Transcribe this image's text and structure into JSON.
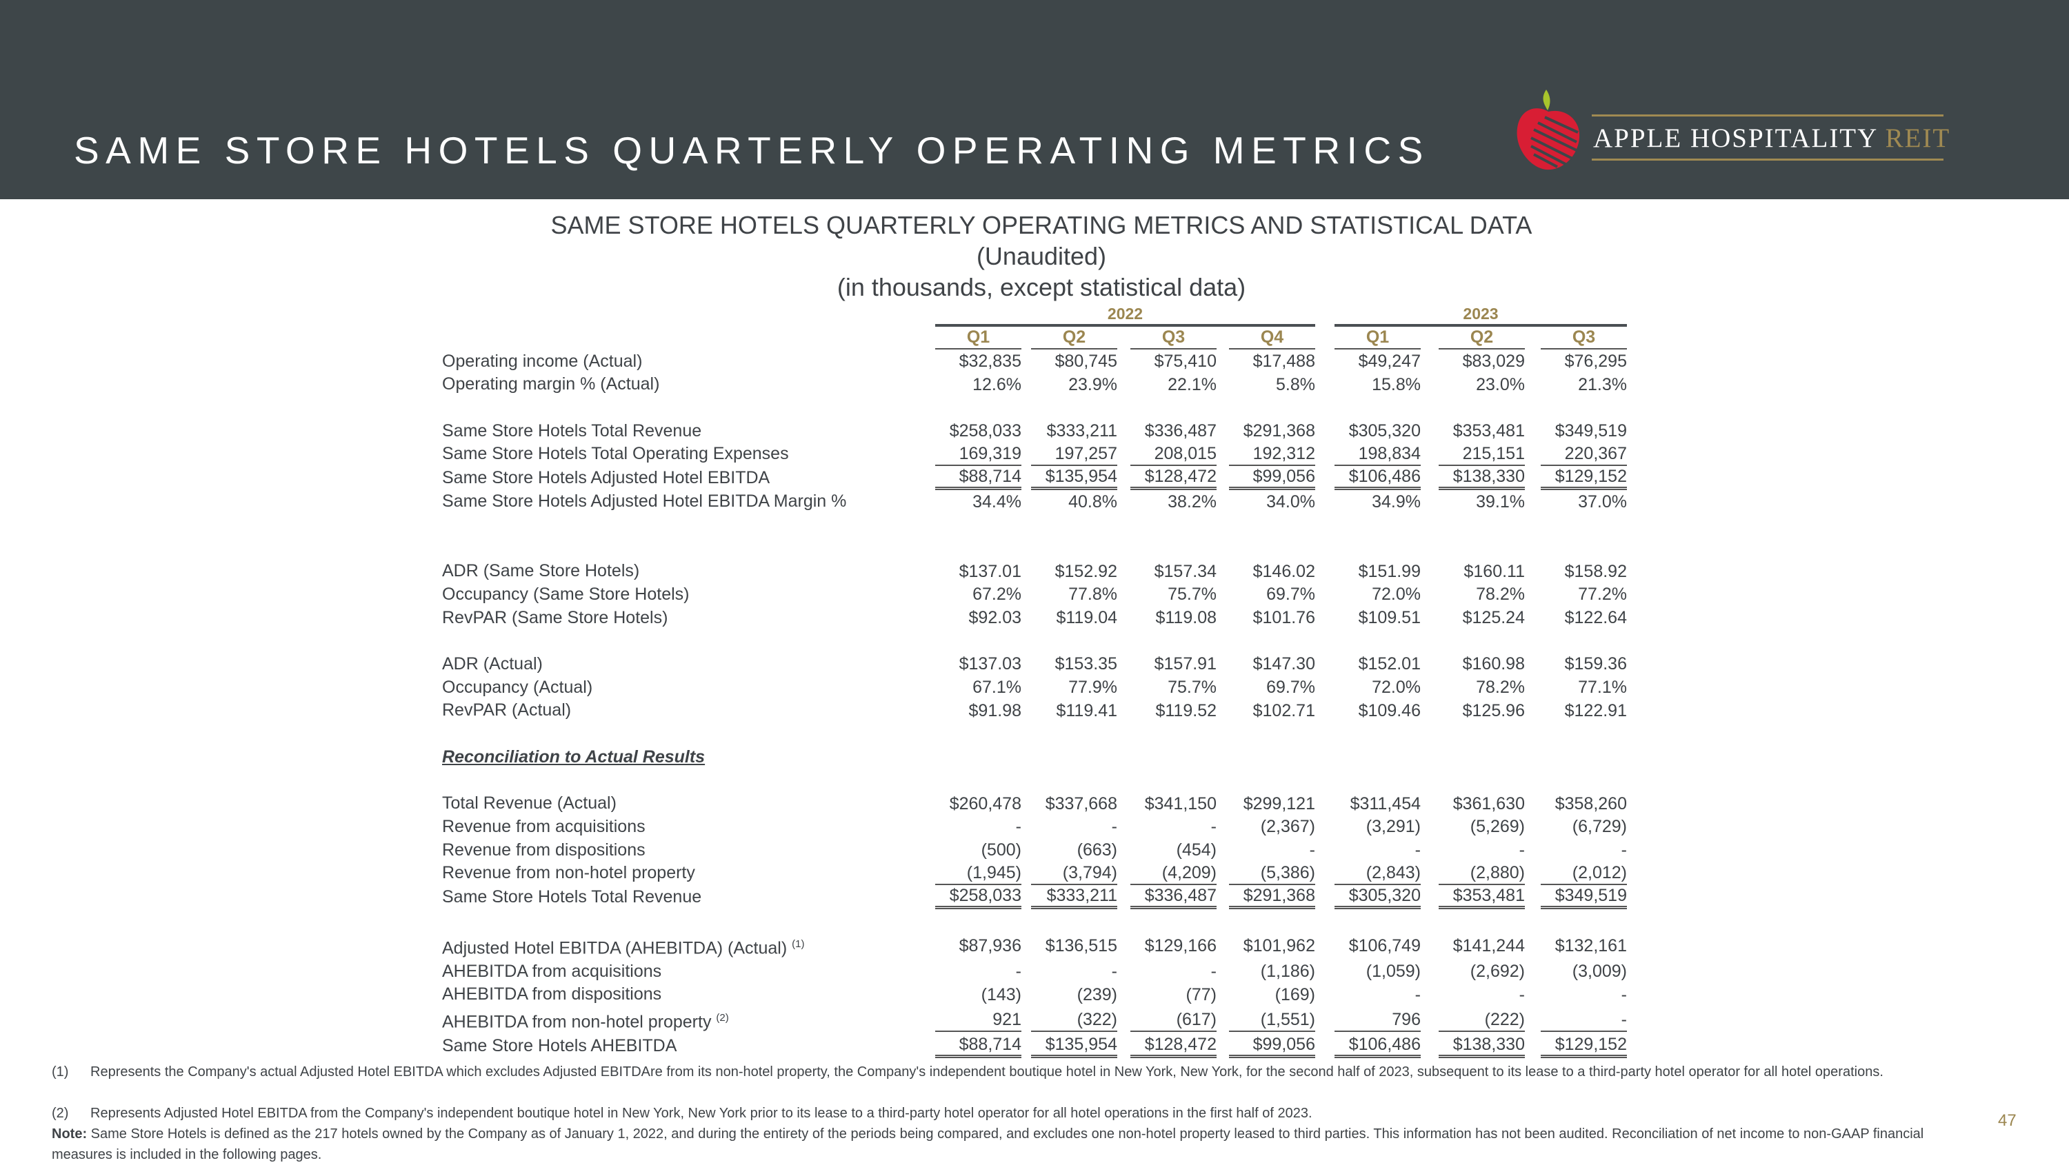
{
  "header": {
    "title": "SAME STORE HOTELS QUARTERLY OPERATING METRICS",
    "logo": {
      "text": "APPLE HOSPITALITY",
      "accent": "REIT"
    }
  },
  "table_title": {
    "line1": "SAME STORE HOTELS QUARTERLY OPERATING METRICS AND STATISTICAL DATA",
    "line2": "(Unaudited)",
    "line3": "(in thousands, except statistical data)"
  },
  "years": [
    "2022",
    "2023"
  ],
  "quarters": [
    "Q1",
    "Q2",
    "Q3",
    "Q4",
    "Q1",
    "Q2",
    "Q3"
  ],
  "rows": [
    {
      "label": "Operating income (Actual)",
      "values": [
        "$32,835",
        "$80,745",
        "$75,410",
        "$17,488",
        "$49,247",
        "$83,029",
        "$76,295"
      ]
    },
    {
      "label": "Operating margin % (Actual)",
      "values": [
        "12.6%",
        "23.9%",
        "22.1%",
        "5.8%",
        "15.8%",
        "23.0%",
        "21.3%"
      ]
    },
    null,
    {
      "label": "Same Store Hotels Total Revenue",
      "values": [
        "$258,033",
        "$333,211",
        "$336,487",
        "$291,368",
        "$305,320",
        "$353,481",
        "$349,519"
      ]
    },
    {
      "label": "Same Store Hotels Total Operating Expenses",
      "values": [
        "169,319",
        "197,257",
        "208,015",
        "192,312",
        "198,834",
        "215,151",
        "220,367"
      ],
      "line": "u"
    },
    {
      "label": "Same Store Hotels Adjusted Hotel EBITDA",
      "values": [
        "$88,714",
        "$135,954",
        "$128,472",
        "$99,056",
        "$106,486",
        "$138,330",
        "$129,152"
      ],
      "line": "uu"
    },
    {
      "label": "Same Store Hotels Adjusted Hotel EBITDA Margin %",
      "values": [
        "34.4%",
        "40.8%",
        "38.2%",
        "34.0%",
        "34.9%",
        "39.1%",
        "37.0%"
      ]
    },
    null,
    null,
    {
      "label": "ADR (Same Store Hotels)",
      "values": [
        "$137.01",
        "$152.92",
        "$157.34",
        "$146.02",
        "$151.99",
        "$160.11",
        "$158.92"
      ]
    },
    {
      "label": "Occupancy (Same Store Hotels)",
      "values": [
        "67.2%",
        "77.8%",
        "75.7%",
        "69.7%",
        "72.0%",
        "78.2%",
        "77.2%"
      ]
    },
    {
      "label": "RevPAR (Same Store Hotels)",
      "values": [
        "$92.03",
        "$119.04",
        "$119.08",
        "$101.76",
        "$109.51",
        "$125.24",
        "$122.64"
      ]
    },
    null,
    {
      "label": "ADR (Actual)",
      "values": [
        "$137.03",
        "$153.35",
        "$157.91",
        "$147.30",
        "$152.01",
        "$160.98",
        "$159.36"
      ]
    },
    {
      "label": "Occupancy (Actual)",
      "values": [
        "67.1%",
        "77.9%",
        "75.7%",
        "69.7%",
        "72.0%",
        "78.2%",
        "77.1%"
      ]
    },
    {
      "label": "RevPAR (Actual)",
      "values": [
        "$91.98",
        "$119.41",
        "$119.52",
        "$102.71",
        "$109.46",
        "$125.96",
        "$122.91"
      ]
    },
    null,
    {
      "label": "Reconciliation to Actual Results",
      "section": true,
      "values": []
    },
    null,
    {
      "label": "Total Revenue (Actual)",
      "values": [
        "$260,478",
        "$337,668",
        "$341,150",
        "$299,121",
        "$311,454",
        "$361,630",
        "$358,260"
      ]
    },
    {
      "label": "Revenue from acquisitions",
      "values": [
        "-",
        "-",
        "-",
        "(2,367)",
        "(3,291)",
        "(5,269)",
        "(6,729)"
      ]
    },
    {
      "label": "Revenue from dispositions",
      "values": [
        "(500)",
        "(663)",
        "(454)",
        "-",
        "-",
        "-",
        "-"
      ]
    },
    {
      "label": "Revenue from non-hotel property",
      "values": [
        "(1,945)",
        "(3,794)",
        "(4,209)",
        "(5,386)",
        "(2,843)",
        "(2,880)",
        "(2,012)"
      ],
      "line": "u"
    },
    {
      "label": "Same Store Hotels Total Revenue",
      "values": [
        "$258,033",
        "$333,211",
        "$336,487",
        "$291,368",
        "$305,320",
        "$353,481",
        "$349,519"
      ],
      "line": "uu"
    },
    null,
    {
      "label": "Adjusted Hotel EBITDA (AHEBITDA) (Actual)",
      "sup": "(1)",
      "values": [
        "$87,936",
        "$136,515",
        "$129,166",
        "$101,962",
        "$106,749",
        "$141,244",
        "$132,161"
      ]
    },
    {
      "label": "AHEBITDA from acquisitions",
      "values": [
        "-",
        "-",
        "-",
        "(1,186)",
        "(1,059)",
        "(2,692)",
        "(3,009)"
      ]
    },
    {
      "label": "AHEBITDA from dispositions",
      "values": [
        "(143)",
        "(239)",
        "(77)",
        "(169)",
        "-",
        "-",
        "-"
      ]
    },
    {
      "label": "AHEBITDA from non-hotel property",
      "sup": "(2)",
      "values": [
        "921",
        "(322)",
        "(617)",
        "(1,551)",
        "796",
        "(222)",
        "-"
      ],
      "line": "u"
    },
    {
      "label": "Same Store Hotels AHEBITDA",
      "values": [
        "$88,714",
        "$135,954",
        "$128,472",
        "$99,056",
        "$106,486",
        "$138,330",
        "$129,152"
      ],
      "line": "uu"
    }
  ],
  "footnotes": [
    {
      "num": "(1)",
      "text": "Represents the Company's actual Adjusted Hotel EBITDA which excludes Adjusted EBITDAre from its non-hotel property, the Company's independent boutique hotel in New York, New York, for the second half of 2023, subsequent to its lease to a third-party hotel operator for all hotel operations."
    },
    {
      "num": "(2)",
      "text": "Represents Adjusted Hotel EBITDA from the Company's independent boutique hotel in New York, New York prior to its lease to a third-party hotel operator for all hotel operations in the first half of 2023."
    }
  ],
  "note": {
    "label": "Note:",
    "text": " Same Store Hotels is defined as the 217 hotels owned by the Company as of January 1, 2022, and during the entirety of the periods being compared, and excludes one non-hotel property leased to third parties. This information has not been audited. Reconciliation of net income to non-GAAP financial measures is included in the following pages."
  },
  "page_number": "47",
  "colors": {
    "header_bg": "#3e4649",
    "gold": "#9b8650",
    "logo_red": "#d81e34",
    "logo_leaf": "#a8c42c"
  }
}
